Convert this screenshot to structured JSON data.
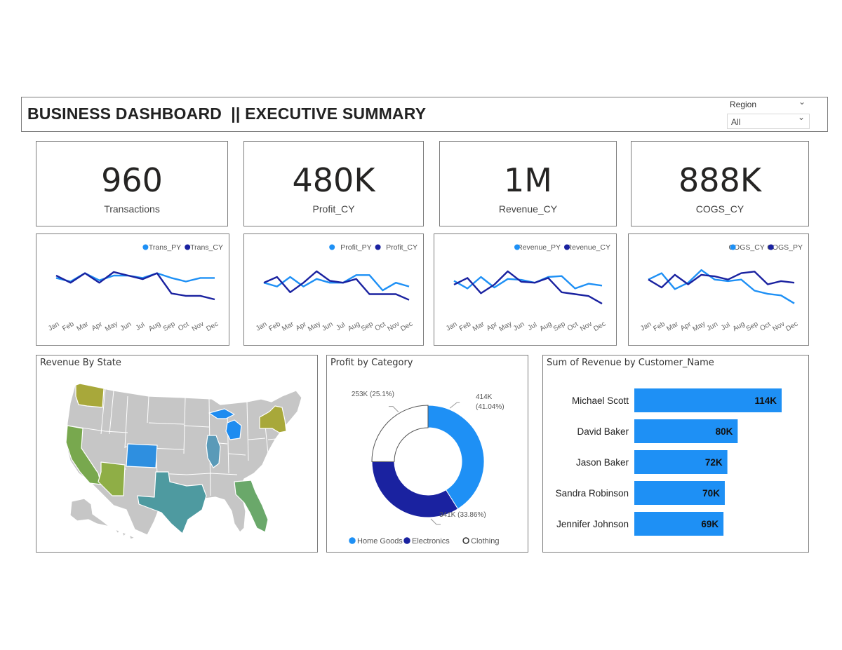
{
  "header": {
    "title": "BUSINESS DASHBOARD  || EXECUTIVE SUMMARY",
    "slicer_label": "Region",
    "slicer_value": "All"
  },
  "kpis": [
    {
      "value": "960",
      "label": "Transactions"
    },
    {
      "value": "480K",
      "label": "Profit_CY"
    },
    {
      "value": "1M",
      "label": "Revenue_CY"
    },
    {
      "value": "888K",
      "label": "COGS_CY"
    }
  ],
  "colors": {
    "light_blue": "#1E90F5",
    "dark_blue": "#1A22A0",
    "bar_blue": "#1E90F5"
  },
  "chart_data": [
    {
      "type": "line",
      "categories": [
        "Jan",
        "Feb",
        "Mar",
        "Apr",
        "May",
        "Jun",
        "Jul",
        "Aug",
        "Sep",
        "Oct",
        "Nov",
        "Dec"
      ],
      "series": [
        {
          "name": "Trans_PY",
          "color": "#1E90F5",
          "values": [
            88,
            85,
            92,
            86,
            90,
            90,
            88,
            92,
            88,
            85,
            88,
            88
          ]
        },
        {
          "name": "Trans_CY",
          "color": "#1A22A0",
          "values": [
            90,
            84,
            92,
            84,
            93,
            90,
            87,
            92,
            75,
            73,
            73,
            70
          ]
        }
      ],
      "ylim": [
        60,
        100
      ]
    },
    {
      "type": "line",
      "categories": [
        "Jan",
        "Feb",
        "Mar",
        "Apr",
        "May",
        "Jun",
        "Jul",
        "Aug",
        "Sep",
        "Oct",
        "Nov",
        "Dec"
      ],
      "series": [
        {
          "name": "Profit_PY",
          "color": "#1E90F5",
          "values": [
            40,
            38,
            43,
            38,
            42,
            40,
            40,
            44,
            44,
            36,
            40,
            38
          ]
        },
        {
          "name": "Profit_CY",
          "color": "#1A22A0",
          "values": [
            40,
            43,
            35,
            40,
            46,
            41,
            40,
            42,
            34,
            34,
            34,
            31
          ]
        }
      ],
      "ylim": [
        25,
        50
      ]
    },
    {
      "type": "line",
      "categories": [
        "Jan",
        "Feb",
        "Mar",
        "Apr",
        "May",
        "Jun",
        "Jul",
        "Aug",
        "Sep",
        "Oct",
        "Nov",
        "Dec"
      ],
      "series": [
        {
          "name": "Revenue_PY",
          "color": "#1E90F5",
          "values": [
            92,
            84,
            96,
            85,
            94,
            93,
            90,
            96,
            97,
            84,
            89,
            87
          ]
        },
        {
          "name": "Revenue_CY",
          "color": "#1A22A0",
          "values": [
            88,
            95,
            79,
            88,
            102,
            91,
            90,
            95,
            80,
            78,
            76,
            68
          ]
        }
      ],
      "ylim": [
        60,
        110
      ]
    },
    {
      "type": "line",
      "categories": [
        "Jan",
        "Feb",
        "Mar",
        "Apr",
        "May",
        "Jun",
        "Jul",
        "Aug",
        "Sep",
        "Oct",
        "Nov",
        "Dec"
      ],
      "series": [
        {
          "name": "COGS_CY",
          "color": "#1E90F5",
          "values": [
            75,
            79,
            69,
            73,
            81,
            75,
            74,
            75,
            68,
            66,
            65,
            60
          ]
        },
        {
          "name": "COGS_PY",
          "color": "#1A22A0",
          "values": [
            75,
            70,
            78,
            72,
            78,
            77,
            75,
            79,
            80,
            72,
            74,
            73
          ]
        }
      ],
      "ylim": [
        55,
        85
      ]
    },
    {
      "type": "pie",
      "title": "Profit by Category",
      "slices": [
        {
          "name": "Home Goods",
          "value": 414,
          "label": "414K",
          "pct": "(41.04%)",
          "color": "#1E90F5"
        },
        {
          "name": "Electronics",
          "value": 341,
          "label": "341K (33.86%)",
          "color": "#1A22A0"
        },
        {
          "name": "Clothing",
          "value": 253,
          "label": "253K (25.1%)",
          "color": "#ffffff"
        }
      ]
    },
    {
      "type": "bar",
      "title": "Sum of Revenue by Customer_Name",
      "categories": [
        "Michael Scott",
        "David Baker",
        "Jason Baker",
        "Sandra Robinson",
        "Jennifer Johnson"
      ],
      "values": [
        114,
        80,
        72,
        70,
        69
      ],
      "labels": [
        "114K",
        "80K",
        "72K",
        "70K",
        "69K"
      ],
      "xlim": [
        0,
        114
      ]
    }
  ],
  "map": {
    "title": "Revenue By State",
    "highlighted_states": [
      {
        "name": "Washington",
        "color": "#A8A83A"
      },
      {
        "name": "California",
        "color": "#78A84E"
      },
      {
        "name": "Arizona",
        "color": "#8FAE46"
      },
      {
        "name": "Colorado",
        "color": "#2E8FE0"
      },
      {
        "name": "Texas",
        "color": "#4E9AA0"
      },
      {
        "name": "Illinois",
        "color": "#5A9AB8"
      },
      {
        "name": "Michigan",
        "color": "#1E8CF0"
      },
      {
        "name": "New York",
        "color": "#A8A83A"
      },
      {
        "name": "Florida",
        "color": "#6AA86A"
      }
    ]
  }
}
